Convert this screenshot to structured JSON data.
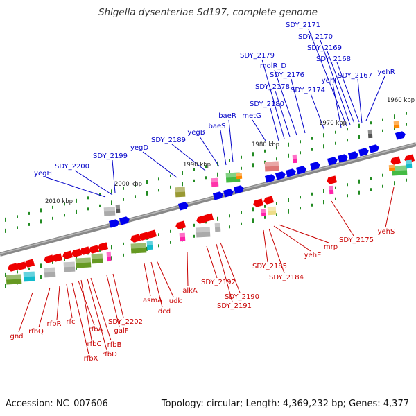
{
  "title": "Shigella dysenteriae Sd197, complete genome",
  "footer": {
    "accession": "Accession: NC_007606",
    "summary": "Topology: circular; Length: 4,369,232 bp; Genes: 4,377"
  },
  "scale_labels": [
    "1960 kbp",
    "1970 kbp",
    "1980 kbp",
    "1990 kbp",
    "2000 kbp",
    "2010 kbp"
  ],
  "genes_forward": [
    "SDY_2171",
    "SDY_2170",
    "SDY_2169",
    "SDY_2168",
    "SDY_2179",
    "molR_D",
    "SDY_2176",
    "yehP",
    "SDY_2167",
    "yehR",
    "SDY_2178",
    "SDY_2174",
    "SDY_2180",
    "metG",
    "baeR",
    "baeS",
    "yegB",
    "SDY_2189",
    "yegD",
    "SDY_2199",
    "SDY_2200",
    "yegH"
  ],
  "genes_reverse": [
    "gnd",
    "rfbQ",
    "rfbR",
    "rfc",
    "rfbA",
    "rfbC",
    "rfbX",
    "rfbB",
    "rfbD",
    "galF",
    "SDY_2202",
    "asmA",
    "dcd",
    "udk",
    "alkA",
    "SDY_2192",
    "SDY_2190",
    "SDY_2191",
    "SDY_2185",
    "SDY_2184",
    "yehE",
    "mrp",
    "SDY_2175",
    "yehS"
  ],
  "colors": {
    "forward_label": "#0000c8",
    "reverse_label": "#c80000",
    "forward_gene": "#0000ee",
    "reverse_gene": "#ee0000",
    "axis": "#777777",
    "tick": "#228b22"
  }
}
